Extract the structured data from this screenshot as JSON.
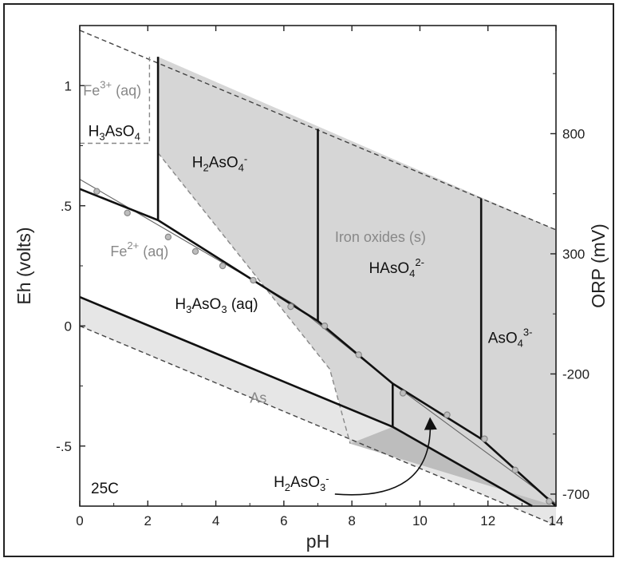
{
  "chart_data": {
    "type": "diagram",
    "xlabel": "pH",
    "ylabel": "Eh (volts)",
    "ylabel_right": "ORP (mV)",
    "xlim": [
      0,
      14
    ],
    "ylim": [
      -0.75,
      1.25
    ],
    "x_ticks": [
      "0",
      "2",
      "4",
      "6",
      "8",
      "10",
      "12",
      "14"
    ],
    "y_ticks": [
      {
        "value": 1.0,
        "label": "1"
      },
      {
        "value": 0.5,
        "label": ".5"
      },
      {
        "value": 0.0,
        "label": "0"
      },
      {
        "value": -0.5,
        "label": "-.5"
      }
    ],
    "right_ticks": [
      {
        "value": 0.8,
        "label": "800"
      },
      {
        "value": 0.3,
        "label": "300"
      },
      {
        "value": -0.2,
        "label": "-200"
      },
      {
        "value": -0.7,
        "label": "-700"
      }
    ],
    "temperature": "25C",
    "colors": {
      "iron_oxide_fill": "#d6d6d6",
      "as_fill": "#e6e6e6",
      "dark_fill": "#bdbdbd",
      "marker": "#8a8a8a"
    },
    "regions": [
      {
        "id": "fe3",
        "base": "Fe",
        "sup": "3+",
        "tail": " (aq)",
        "x": 0.1,
        "y": 0.96,
        "style": "gray"
      },
      {
        "id": "h3aso4",
        "base": "H",
        "sub": "3",
        "mid": "AsO",
        "sub2": "4",
        "x": 0.25,
        "y": 0.79,
        "style": "black"
      },
      {
        "id": "h2aso4",
        "base": "H",
        "sub": "2",
        "mid": "AsO",
        "sub2": "4",
        "sup2": "-",
        "x": 3.3,
        "y": 0.66,
        "style": "black"
      },
      {
        "id": "iron_oxides",
        "text": "Iron oxides (s)",
        "x": 7.5,
        "y": 0.35,
        "style": "gray"
      },
      {
        "id": "fe2",
        "base": "Fe",
        "sup": "2+",
        "tail": " (aq)",
        "x": 0.9,
        "y": 0.29,
        "style": "gray"
      },
      {
        "id": "haso4",
        "base": "HAsO",
        "sub": "4",
        "sup": "2-",
        "x": 8.5,
        "y": 0.22,
        "style": "black"
      },
      {
        "id": "h3aso3",
        "base": "H",
        "sub": "3",
        "mid": "AsO",
        "sub2": "3",
        "tail": " (aq)",
        "x": 2.8,
        "y": 0.07,
        "style": "black"
      },
      {
        "id": "aso4",
        "base": "AsO",
        "sub": "4",
        "sup": "3-",
        "x": 12.0,
        "y": -0.07,
        "style": "black"
      },
      {
        "id": "as",
        "text": "As",
        "x": 5.0,
        "y": -0.32,
        "style": "gray"
      },
      {
        "id": "h2aso3",
        "base": "H",
        "sub": "2",
        "mid": "AsO",
        "sub2": "3",
        "sup2": "-",
        "x": 5.7,
        "y": -0.67,
        "style": "black"
      }
    ],
    "lines": [
      {
        "id": "water_upper",
        "style": "dashed",
        "points": [
          [
            0,
            1.23
          ],
          [
            14,
            0.4
          ]
        ]
      },
      {
        "id": "water_lower",
        "style": "dashed",
        "points": [
          [
            0,
            0.0
          ],
          [
            14,
            -0.83
          ]
        ]
      },
      {
        "id": "fe3_box",
        "style": "dashed-gray",
        "points": [
          [
            0,
            0.76
          ],
          [
            2.05,
            0.76
          ],
          [
            2.05,
            1.12
          ]
        ]
      },
      {
        "id": "fe_oxide_boundary",
        "style": "dashed-gray",
        "points": [
          [
            2.3,
            0.72
          ],
          [
            7.35,
            -0.18
          ],
          [
            7.95,
            -0.49
          ]
        ]
      },
      {
        "id": "as5_as3_upper",
        "style": "thin",
        "points": [
          [
            0,
            0.61
          ],
          [
            6.3,
            0.09
          ],
          [
            9.2,
            -0.24
          ],
          [
            14,
            -0.74
          ]
        ]
      },
      {
        "id": "as5_as3",
        "style": "bold",
        "points": [
          [
            0,
            0.57
          ],
          [
            2.3,
            0.44
          ],
          [
            7.0,
            0.02
          ],
          [
            9.2,
            -0.24
          ],
          [
            11.8,
            -0.47
          ],
          [
            14,
            -0.75
          ]
        ]
      },
      {
        "id": "as3_as",
        "style": "bold",
        "points": [
          [
            0,
            0.12
          ],
          [
            9.2,
            -0.42
          ],
          [
            13.3,
            -0.75
          ]
        ]
      },
      {
        "id": "h3aso3_h2aso3",
        "style": "bold",
        "points": [
          [
            9.2,
            -0.24
          ],
          [
            9.2,
            -0.42
          ]
        ]
      },
      {
        "id": "h3aso4_h2aso4",
        "style": "bold",
        "points": [
          [
            2.3,
            1.12
          ],
          [
            2.3,
            0.44
          ]
        ]
      },
      {
        "id": "h2aso4_haso4",
        "style": "bold",
        "points": [
          [
            7.0,
            0.82
          ],
          [
            7.0,
            0.02
          ]
        ]
      },
      {
        "id": "haso4_aso4",
        "style": "bold",
        "points": [
          [
            11.8,
            0.53
          ],
          [
            11.8,
            -0.47
          ]
        ]
      }
    ],
    "markers": [
      [
        0.5,
        0.56
      ],
      [
        1.4,
        0.47
      ],
      [
        2.6,
        0.37
      ],
      [
        3.4,
        0.31
      ],
      [
        4.2,
        0.25
      ],
      [
        5.1,
        0.19
      ],
      [
        6.2,
        0.08
      ],
      [
        7.2,
        0.0
      ],
      [
        8.2,
        -0.12
      ],
      [
        9.5,
        -0.28
      ],
      [
        10.8,
        -0.37
      ],
      [
        11.9,
        -0.47
      ],
      [
        12.8,
        -0.6
      ],
      [
        13.8,
        -0.73
      ]
    ],
    "iron_oxide_region": [
      [
        2.3,
        1.12
      ],
      [
        2.3,
        0.72
      ],
      [
        7.35,
        -0.18
      ],
      [
        7.95,
        -0.49
      ],
      [
        14,
        -0.75
      ],
      [
        14,
        0.4
      ],
      [
        2.3,
        1.12
      ]
    ],
    "as_region": [
      [
        0,
        0.12
      ],
      [
        9.2,
        -0.42
      ],
      [
        13.3,
        -0.75
      ],
      [
        14,
        -0.75
      ],
      [
        14,
        -0.83
      ],
      [
        0,
        0.0
      ]
    ],
    "as_dark_region": [
      [
        7.95,
        -0.49
      ],
      [
        9.2,
        -0.42
      ],
      [
        13.3,
        -0.75
      ],
      [
        14,
        -0.75
      ]
    ],
    "annotation_arrow": {
      "from": [
        7.5,
        -0.7
      ],
      "to": [
        10.3,
        -0.39
      ]
    }
  }
}
